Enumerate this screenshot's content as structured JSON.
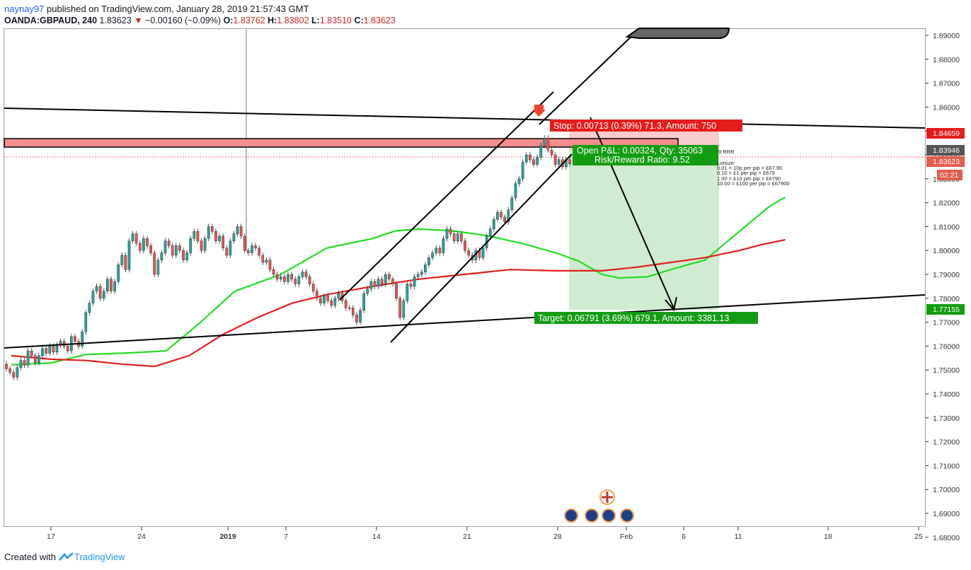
{
  "header": {
    "user": "naynay97",
    "published": "published on TradingView.com, January 28, 2019 21:57:43 GMT",
    "symbol": "OANDA:GBPAUD, 240",
    "last": "1.83623",
    "change": "−0.00160 (−0.09%)",
    "o_label": "O:",
    "o": "1.83762",
    "h_label": "H:",
    "h": "1.83802",
    "l_label": "L:",
    "l": "1.83510",
    "c_label": "C:",
    "c": "1.83623"
  },
  "footer": {
    "created_with": "Created with",
    "brand": "TradingView"
  },
  "colors": {
    "ma_fast": "#22dd22",
    "ma_slow": "#e31e1e",
    "up": "#26a69a",
    "down": "#ef5350",
    "stop_zone": "#f7c6c6",
    "target_zone": "#cdebcd",
    "resistance_zone": "#f58d8d",
    "stop_label": "#e51c1c",
    "target_label": "#139c13"
  },
  "chart_data": {
    "type": "candlestick",
    "y_ticks": [
      "1.89000",
      "1.88000",
      "1.87000",
      "1.86000",
      "1.85000",
      "1.84000",
      "1.83000",
      "1.82000",
      "1.81000",
      "1.80000",
      "1.79000",
      "1.78000",
      "1.77000",
      "1.76000",
      "1.75000",
      "1.74000",
      "1.73000",
      "1.72000",
      "1.71000",
      "1.70000",
      "1.69000",
      "1.68000"
    ],
    "x_ticks": [
      "17",
      "24",
      "2019",
      "7",
      "14",
      "21",
      "28",
      "Feb",
      "6",
      "11",
      "18",
      "25"
    ],
    "price_labels": {
      "stop": "1.84659",
      "high_marker": "1.83946",
      "last": "1.83623",
      "countdown": "02:21",
      "target": "1.77155"
    },
    "position": {
      "stop_text": "Stop: 0.00713 (0.39%) 71.3, Amount: 750",
      "pnl_text": "Open P&L: 0.00324, Qty: 35063",
      "rr_text": "Risk/Reward Ratio: 9.52",
      "target_text": "Target: 0.06791 (3.69%) 679.1, Amount: 3381.13",
      "entry": 1.8394,
      "stop": 1.84659,
      "target": 1.77155
    },
    "note_lines": [
      ":9 RRR",
      "Lotsize:",
      "0.01 = 10p per pip = £67.90",
      "0.10 = £1 per pip = £679",
      "1.00 = £10 per pip = £6790",
      "10.00 = £100 per pip = £67900"
    ],
    "ma_fast_points": [
      [
        0.5,
        1.7522
      ],
      [
        4,
        1.753
      ],
      [
        7,
        1.7565
      ],
      [
        11,
        1.7572
      ],
      [
        14,
        1.758
      ],
      [
        17,
        1.77
      ],
      [
        20,
        1.783
      ],
      [
        24,
        1.79
      ],
      [
        28,
        1.801
      ],
      [
        32,
        1.805
      ],
      [
        34,
        1.8082
      ],
      [
        36,
        1.809
      ],
      [
        39,
        1.8082
      ],
      [
        42,
        1.8062
      ],
      [
        45,
        1.803
      ],
      [
        48,
        1.799
      ],
      [
        50,
        1.7955
      ],
      [
        52,
        1.79
      ],
      [
        53.5,
        1.7885
      ],
      [
        56,
        1.789
      ],
      [
        58,
        1.792
      ],
      [
        61,
        1.796
      ],
      [
        63,
        1.804
      ],
      [
        65,
        1.812
      ],
      [
        66.5,
        1.818
      ],
      [
        67.5,
        1.821
      ],
      [
        68,
        1.8222
      ]
    ],
    "ma_slow_points": [
      [
        0.5,
        1.756
      ],
      [
        4,
        1.7545
      ],
      [
        7,
        1.754
      ],
      [
        10,
        1.7525
      ],
      [
        13,
        1.7515
      ],
      [
        16,
        1.756
      ],
      [
        19,
        1.765
      ],
      [
        22,
        1.772
      ],
      [
        25,
        1.778
      ],
      [
        28,
        1.7815
      ],
      [
        32,
        1.785
      ],
      [
        36,
        1.788
      ],
      [
        40,
        1.79
      ],
      [
        44,
        1.792
      ],
      [
        48,
        1.7915
      ],
      [
        52,
        1.7915
      ],
      [
        55,
        1.793
      ],
      [
        58,
        1.795
      ],
      [
        61,
        1.797
      ],
      [
        64,
        1.8
      ],
      [
        66,
        1.8025
      ],
      [
        68,
        1.8045
      ]
    ],
    "candles": [
      [
        1.7525,
        1.7505
      ],
      [
        1.7505,
        1.749
      ],
      [
        1.749,
        1.747
      ],
      [
        1.747,
        1.751
      ],
      [
        1.751,
        1.754
      ],
      [
        1.754,
        1.752
      ],
      [
        1.752,
        1.758
      ],
      [
        1.758,
        1.756
      ],
      [
        1.756,
        1.753
      ],
      [
        1.753,
        1.756
      ],
      [
        1.756,
        1.759
      ],
      [
        1.759,
        1.757
      ],
      [
        1.757,
        1.76
      ],
      [
        1.76,
        1.7575
      ],
      [
        1.7575,
        1.7605
      ],
      [
        1.7605,
        1.762
      ],
      [
        1.762,
        1.76
      ],
      [
        1.76,
        1.758
      ],
      [
        1.758,
        1.764
      ],
      [
        1.764,
        1.762
      ],
      [
        1.762,
        1.76
      ],
      [
        1.76,
        1.766
      ],
      [
        1.766,
        1.774
      ],
      [
        1.774,
        1.778
      ],
      [
        1.778,
        1.783
      ],
      [
        1.783,
        1.785
      ],
      [
        1.785,
        1.78
      ],
      [
        1.78,
        1.783
      ],
      [
        1.783,
        1.788
      ],
      [
        1.788,
        1.783
      ],
      [
        1.783,
        1.787
      ],
      [
        1.787,
        1.794
      ],
      [
        1.794,
        1.798
      ],
      [
        1.798,
        1.792
      ],
      [
        1.792,
        1.804
      ],
      [
        1.804,
        1.807
      ],
      [
        1.807,
        1.803
      ],
      [
        1.803,
        1.8
      ],
      [
        1.8,
        1.805
      ],
      [
        1.805,
        1.802
      ],
      [
        1.802,
        1.799
      ],
      [
        1.799,
        1.79
      ],
      [
        1.79,
        1.796
      ],
      [
        1.796,
        1.799
      ],
      [
        1.799,
        1.804
      ],
      [
        1.804,
        1.802
      ],
      [
        1.802,
        1.798
      ],
      [
        1.798,
        1.802
      ],
      [
        1.802,
        1.8
      ],
      [
        1.8,
        1.796
      ],
      [
        1.796,
        1.799
      ],
      [
        1.799,
        1.805
      ],
      [
        1.805,
        1.808
      ],
      [
        1.808,
        1.804
      ],
      [
        1.804,
        1.8
      ],
      [
        1.8,
        1.805
      ],
      [
        1.805,
        1.81
      ],
      [
        1.81,
        1.808
      ],
      [
        1.808,
        1.804
      ],
      [
        1.804,
        1.806
      ],
      [
        1.806,
        1.801
      ],
      [
        1.801,
        1.798
      ],
      [
        1.798,
        1.804
      ],
      [
        1.804,
        1.807
      ],
      [
        1.807,
        1.81
      ],
      [
        1.81,
        1.806
      ],
      [
        1.806,
        1.8
      ],
      [
        1.8,
        1.799
      ],
      [
        1.799,
        1.802
      ],
      [
        1.802,
        1.801
      ],
      [
        1.801,
        1.798
      ],
      [
        1.798,
        1.795
      ],
      [
        1.795,
        1.796
      ],
      [
        1.796,
        1.792
      ],
      [
        1.792,
        1.79
      ],
      [
        1.79,
        1.788
      ],
      [
        1.788,
        1.789
      ],
      [
        1.789,
        1.787
      ],
      [
        1.787,
        1.79
      ],
      [
        1.79,
        1.788
      ],
      [
        1.788,
        1.786
      ],
      [
        1.786,
        1.789
      ],
      [
        1.789,
        1.791
      ],
      [
        1.791,
        1.789
      ],
      [
        1.789,
        1.786
      ],
      [
        1.786,
        1.783
      ],
      [
        1.783,
        1.78
      ],
      [
        1.78,
        1.778
      ],
      [
        1.778,
        1.781
      ],
      [
        1.781,
        1.779
      ],
      [
        1.779,
        1.777
      ],
      [
        1.777,
        1.78
      ],
      [
        1.78,
        1.782
      ],
      [
        1.782,
        1.779
      ],
      [
        1.779,
        1.776
      ],
      [
        1.776,
        1.776
      ],
      [
        1.776,
        1.773
      ],
      [
        1.773,
        1.77
      ],
      [
        1.77,
        1.775
      ],
      [
        1.775,
        1.782
      ],
      [
        1.782,
        1.784
      ],
      [
        1.784,
        1.787
      ],
      [
        1.787,
        1.785
      ],
      [
        1.785,
        1.788
      ],
      [
        1.788,
        1.786
      ],
      [
        1.786,
        1.79
      ],
      [
        1.79,
        1.788
      ],
      [
        1.788,
        1.786
      ],
      [
        1.786,
        1.78
      ],
      [
        1.78,
        1.772
      ],
      [
        1.772,
        1.779
      ],
      [
        1.779,
        1.786
      ],
      [
        1.786,
        1.785
      ],
      [
        1.785,
        1.789
      ],
      [
        1.789,
        1.79
      ],
      [
        1.79,
        1.791
      ],
      [
        1.791,
        1.794
      ],
      [
        1.794,
        1.797
      ],
      [
        1.797,
        1.799
      ],
      [
        1.799,
        1.801
      ],
      [
        1.801,
        1.799
      ],
      [
        1.799,
        1.805
      ],
      [
        1.805,
        1.809
      ],
      [
        1.809,
        1.807
      ],
      [
        1.807,
        1.804
      ],
      [
        1.804,
        1.807
      ],
      [
        1.807,
        1.804
      ],
      [
        1.804,
        1.8
      ],
      [
        1.8,
        1.798
      ],
      [
        1.798,
        1.796
      ],
      [
        1.796,
        1.8
      ],
      [
        1.8,
        1.797
      ],
      [
        1.797,
        1.801
      ],
      [
        1.801,
        1.806
      ],
      [
        1.806,
        1.809
      ],
      [
        1.809,
        1.813
      ],
      [
        1.813,
        1.816
      ],
      [
        1.816,
        1.814
      ],
      [
        1.814,
        1.812
      ],
      [
        1.812,
        1.817
      ],
      [
        1.817,
        1.822
      ],
      [
        1.822,
        1.828
      ],
      [
        1.828,
        1.83
      ],
      [
        1.83,
        1.837
      ],
      [
        1.837,
        1.84
      ],
      [
        1.84,
        1.838
      ],
      [
        1.838,
        1.836
      ],
      [
        1.836,
        1.839
      ],
      [
        1.839,
        1.844
      ],
      [
        1.844,
        1.847
      ],
      [
        1.847,
        1.842
      ],
      [
        1.842,
        1.84
      ],
      [
        1.84,
        1.836
      ],
      [
        1.836,
        1.838
      ],
      [
        1.838,
        1.835
      ],
      [
        1.835,
        1.838
      ],
      [
        1.838,
        1.8362
      ]
    ]
  }
}
